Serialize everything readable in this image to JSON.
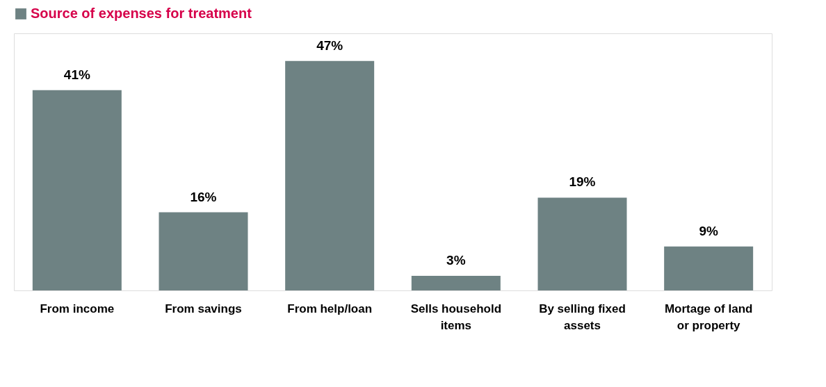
{
  "chart_data": {
    "type": "bar",
    "categories": [
      "From income",
      "From savings",
      "From help/loan",
      "Sells household items",
      "By selling fixed assets",
      "Mortage of land or property"
    ],
    "series": [
      {
        "name": "Source of expenses for treatment",
        "color": "#6e8283",
        "values": [
          41,
          16,
          47,
          3,
          19,
          9
        ],
        "value_labels": [
          "41%",
          "16%",
          "47%",
          "3%",
          "19%",
          "9%"
        ]
      }
    ],
    "legend": "top",
    "grid": false
  }
}
